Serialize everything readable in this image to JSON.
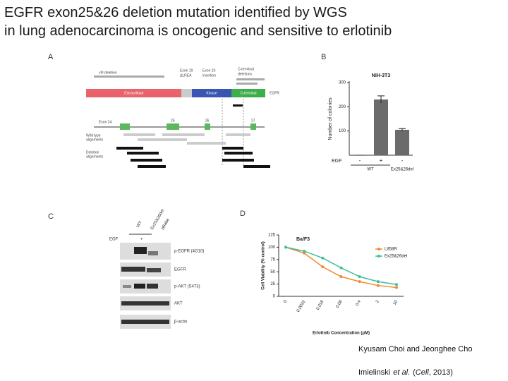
{
  "header": {
    "title_lines": [
      "EGFR exon25&26 deletion mutation identified by WGS",
      "in lung adenocarcinoma is oncogenic and sensitive to erlotinib"
    ]
  },
  "panel_labels": [
    "A",
    "B",
    "C",
    "D"
  ],
  "figure_a": {
    "labels": [
      "vIII deletion",
      "Exon 19",
      "ΔLREA",
      "Exon 20",
      "insertion",
      "C-terminal",
      "deletions"
    ],
    "domains": [
      "Extracellular",
      "Kinase",
      "C-terminal"
    ],
    "gene": "EGFR",
    "exons": [
      "Exon 24",
      "25",
      "26",
      "27"
    ],
    "tracks": [
      "Wild type",
      "alignments",
      "Deletion",
      "alignments"
    ]
  },
  "figure_c": {
    "lanes": [
      "WT",
      "Ex25&26del",
      "pBabe"
    ],
    "egf_label": "EGF",
    "egf": "+",
    "blots": [
      "p-EGFR (4G10)",
      "EGFR",
      "p-AKT (S473)",
      "AKT",
      "β-actin"
    ]
  },
  "chart_data": [
    {
      "type": "bar",
      "title": "NIH-3T3",
      "y_label": "Number of colonies",
      "x_label": "EGF",
      "categories": [
        "-",
        "+",
        "-"
      ],
      "groups": [
        "WT",
        "Ex25&26del"
      ],
      "values": [
        0,
        230,
        105
      ],
      "errors": [
        0,
        15,
        5
      ],
      "color": "#6b6b6b",
      "ylim": [
        0,
        300
      ],
      "yticks": [
        100,
        200,
        300
      ]
    },
    {
      "type": "line",
      "title": "Ba/F3",
      "y_label": "Cell Viability (% control)",
      "x_label": "Erlotinib Concentration (μM)",
      "categories": [
        "0",
        "0.0032",
        "0.016",
        "0.08",
        "0.4",
        "2",
        "10"
      ],
      "series": [
        {
          "name": "L858R",
          "color": "#f08a30",
          "values": [
            100,
            88,
            60,
            40,
            30,
            22,
            18
          ]
        },
        {
          "name": "Ex25&26del",
          "color": "#3cbf9a",
          "values": [
            100,
            92,
            78,
            58,
            40,
            30,
            24
          ]
        }
      ],
      "ylim": [
        0,
        125
      ],
      "yticks": [
        0,
        25,
        50,
        75,
        100,
        125
      ],
      "legend": "upper right"
    }
  ],
  "footer": {
    "authors": "Kyusam Choi and Jeonghee Cho",
    "citation": [
      "Imielinski",
      "et al.",
      "(",
      "Cell",
      ", 2013)"
    ]
  }
}
